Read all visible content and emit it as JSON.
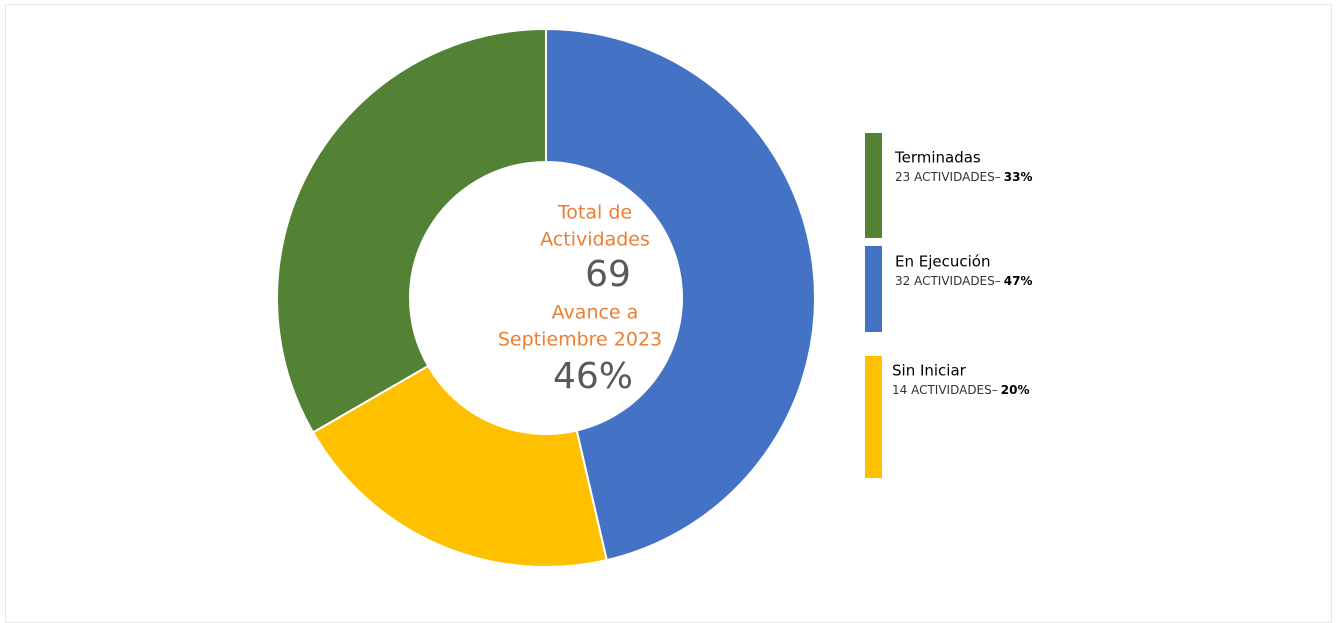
{
  "chart_data": {
    "type": "pie",
    "donut": true,
    "categories": [
      "Terminadas",
      "En Ejecución",
      "Sin Iniciar"
    ],
    "colors": [
      "#548235",
      "#4472c4",
      "#ffc000"
    ],
    "values": [
      23,
      32,
      14
    ],
    "value_labels": [
      "23 ACTIVIDADES–",
      "32 ACTIVIDADES–",
      "14 ACTIVIDADES–"
    ],
    "percents": [
      33,
      47,
      20
    ],
    "percent_labels": [
      "33%",
      "47%",
      "20%"
    ],
    "center_title": [
      "Total de",
      "Actividades"
    ],
    "total": 69,
    "center_subtitle": [
      "Avance a",
      "Septiembre 2023"
    ],
    "progress": {
      "value": 46,
      "label": "46%"
    }
  }
}
